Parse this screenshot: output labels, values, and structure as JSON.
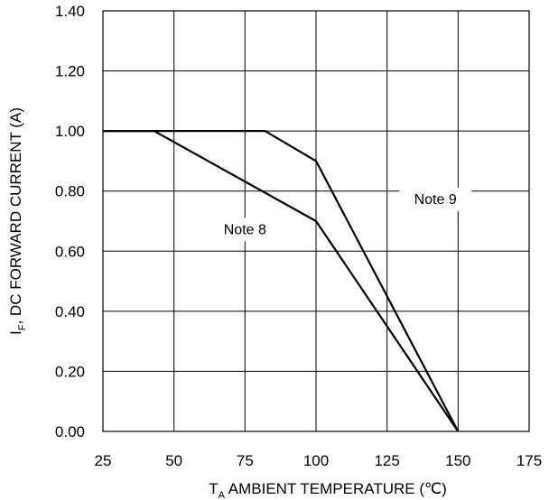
{
  "chart_data": {
    "type": "line",
    "xlabel": {
      "main": "T",
      "sub": "A",
      "rest": " AMBIENT TEMPERATURE (℃)"
    },
    "ylabel": {
      "main": "I",
      "sub": "F",
      "rest": ", DC FORWARD  CURRENT  (A)"
    },
    "xlim": [
      25,
      175
    ],
    "ylim": [
      0,
      1.4
    ],
    "x_ticks": [
      "25",
      "50",
      "75",
      "100",
      "125",
      "150",
      "175"
    ],
    "y_ticks": [
      "0.00",
      "0.20",
      "0.40",
      "0.60",
      "0.80",
      "1.00",
      "1.20",
      "1.40"
    ],
    "grid": true,
    "series": [
      {
        "name": "Note 8",
        "points": [
          [
            25,
            1.0
          ],
          [
            43,
            1.0
          ],
          [
            100,
            0.7
          ],
          [
            150,
            0.0
          ]
        ]
      },
      {
        "name": "Note 9",
        "points": [
          [
            25,
            1.0
          ],
          [
            82,
            1.0
          ],
          [
            100,
            0.9
          ],
          [
            150,
            0.0
          ]
        ]
      }
    ],
    "annotations": [
      {
        "text": "Note 8",
        "x": 75,
        "y": 0.66
      },
      {
        "text": "Note 9",
        "x": 142,
        "y": 0.76
      }
    ]
  }
}
